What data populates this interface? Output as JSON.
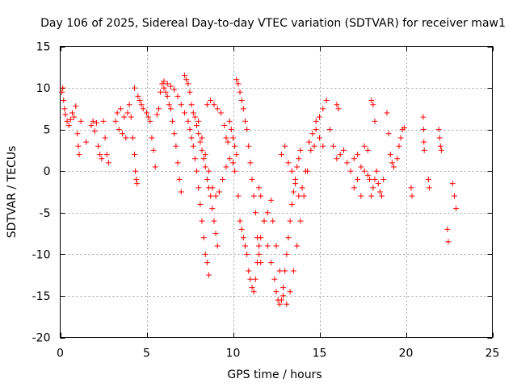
{
  "chart_data": {
    "type": "scatter",
    "title": "Day 106 of 2025, Sidereal Day-to-day VTEC variation (SDTVAR) for receiver maw1",
    "xlabel": "GPS time / hours",
    "ylabel": "SDTVAR / TECUs",
    "xlim": [
      0,
      25
    ],
    "ylim": [
      -20,
      15
    ],
    "xticks": [
      0,
      5,
      10,
      15,
      20,
      25
    ],
    "yticks": [
      -20,
      -15,
      -10,
      -5,
      0,
      5,
      10,
      15
    ],
    "grid": true,
    "marker": "+",
    "color": "#ff0000",
    "series": [
      {
        "name": "SDTVAR",
        "points": [
          [
            0.1,
            9.5
          ],
          [
            0.15,
            10.0
          ],
          [
            0.2,
            8.5
          ],
          [
            0.25,
            7.5
          ],
          [
            0.3,
            6.8
          ],
          [
            0.4,
            6.0
          ],
          [
            0.5,
            5.5
          ],
          [
            0.6,
            6.2
          ],
          [
            0.7,
            7.0
          ],
          [
            0.8,
            6.5
          ],
          [
            0.9,
            7.8
          ],
          [
            1.0,
            4.5
          ],
          [
            1.05,
            3.0
          ],
          [
            1.1,
            2.0
          ],
          [
            1.2,
            6.0
          ],
          [
            1.5,
            3.5
          ],
          [
            1.8,
            5.5
          ],
          [
            1.9,
            6.0
          ],
          [
            2.0,
            4.8
          ],
          [
            2.1,
            5.8
          ],
          [
            2.2,
            3.0
          ],
          [
            2.3,
            2.0
          ],
          [
            2.4,
            1.5
          ],
          [
            2.5,
            6.0
          ],
          [
            2.6,
            4.0
          ],
          [
            2.7,
            2.0
          ],
          [
            2.8,
            1.0
          ],
          [
            3.2,
            6.0
          ],
          [
            3.3,
            7.0
          ],
          [
            3.4,
            5.0
          ],
          [
            3.5,
            7.5
          ],
          [
            3.6,
            4.5
          ],
          [
            3.7,
            6.5
          ],
          [
            3.8,
            4.0
          ],
          [
            3.9,
            7.0
          ],
          [
            4.0,
            8.0
          ],
          [
            4.1,
            6.5
          ],
          [
            4.2,
            4.0
          ],
          [
            4.3,
            2.0
          ],
          [
            4.35,
            0.0
          ],
          [
            4.4,
            -1.0
          ],
          [
            4.45,
            -1.5
          ],
          [
            4.3,
            10.0
          ],
          [
            4.5,
            9.0
          ],
          [
            4.6,
            8.5
          ],
          [
            4.7,
            8.0
          ],
          [
            4.8,
            7.5
          ],
          [
            5.0,
            7.0
          ],
          [
            5.1,
            6.5
          ],
          [
            5.2,
            6.0
          ],
          [
            5.3,
            4.0
          ],
          [
            5.4,
            2.5
          ],
          [
            5.5,
            0.5
          ],
          [
            5.6,
            6.8
          ],
          [
            5.7,
            7.5
          ],
          [
            5.8,
            9.5
          ],
          [
            5.9,
            10.5
          ],
          [
            6.0,
            10.0
          ],
          [
            6.1,
            9.5
          ],
          [
            6.2,
            9.0
          ],
          [
            6.3,
            8.0
          ],
          [
            6.4,
            7.5
          ],
          [
            6.5,
            6.0
          ],
          [
            6.6,
            4.5
          ],
          [
            6.7,
            3.0
          ],
          [
            6.8,
            1.0
          ],
          [
            6.9,
            -1.0
          ],
          [
            7.0,
            -2.5
          ],
          [
            6.0,
            10.8
          ],
          [
            6.2,
            10.5
          ],
          [
            6.4,
            10.2
          ],
          [
            6.6,
            9.8
          ],
          [
            6.8,
            9.0
          ],
          [
            7.0,
            8.0
          ],
          [
            7.2,
            7.0
          ],
          [
            7.4,
            6.0
          ],
          [
            7.5,
            5.0
          ],
          [
            7.6,
            4.0
          ],
          [
            7.7,
            3.0
          ],
          [
            7.8,
            1.5
          ],
          [
            7.9,
            0.0
          ],
          [
            8.0,
            -2.0
          ],
          [
            8.1,
            -4.0
          ],
          [
            8.2,
            -6.0
          ],
          [
            8.3,
            -8.0
          ],
          [
            8.4,
            -10.0
          ],
          [
            8.5,
            -11.0
          ],
          [
            8.6,
            -12.5
          ],
          [
            7.2,
            11.5
          ],
          [
            7.3,
            11.0
          ],
          [
            7.4,
            10.5
          ],
          [
            7.5,
            9.5
          ],
          [
            7.6,
            8.0
          ],
          [
            7.7,
            7.0
          ],
          [
            7.8,
            6.5
          ],
          [
            7.9,
            5.5
          ],
          [
            8.0,
            4.5
          ],
          [
            8.1,
            3.5
          ],
          [
            8.2,
            2.5
          ],
          [
            8.3,
            1.5
          ],
          [
            8.4,
            0.5
          ],
          [
            8.5,
            -1.0
          ],
          [
            8.6,
            -2.0
          ],
          [
            8.7,
            -3.0
          ],
          [
            8.8,
            -4.5
          ],
          [
            8.9,
            -6.0
          ],
          [
            9.0,
            -7.5
          ],
          [
            9.1,
            -9.0
          ],
          [
            8.0,
            6.0
          ],
          [
            8.2,
            4.0
          ],
          [
            8.4,
            2.0
          ],
          [
            8.6,
            0.0
          ],
          [
            8.8,
            -2.0
          ],
          [
            9.0,
            -3.0
          ],
          [
            9.2,
            -2.5
          ],
          [
            9.4,
            -1.0
          ],
          [
            9.6,
            0.5
          ],
          [
            9.8,
            1.5
          ],
          [
            10.0,
            1.0
          ],
          [
            10.1,
            0.0
          ],
          [
            8.5,
            8.0
          ],
          [
            8.7,
            8.5
          ],
          [
            8.9,
            8.0
          ],
          [
            9.1,
            7.5
          ],
          [
            9.3,
            7.0
          ],
          [
            9.5,
            5.5
          ],
          [
            9.6,
            4.0
          ],
          [
            9.7,
            3.5
          ],
          [
            10.2,
            11.0
          ],
          [
            10.3,
            10.5
          ],
          [
            10.4,
            9.5
          ],
          [
            10.5,
            8.5
          ],
          [
            10.6,
            7.5
          ],
          [
            10.7,
            6.0
          ],
          [
            10.8,
            5.0
          ],
          [
            10.9,
            3.0
          ],
          [
            11.0,
            1.0
          ],
          [
            11.1,
            -1.0
          ],
          [
            11.2,
            -3.0
          ],
          [
            11.3,
            -5.0
          ],
          [
            11.4,
            -8.0
          ],
          [
            11.5,
            -10.0
          ],
          [
            11.6,
            -11.0
          ],
          [
            9.8,
            6.0
          ],
          [
            9.9,
            5.0
          ],
          [
            10.0,
            4.0
          ],
          [
            10.1,
            3.0
          ],
          [
            10.2,
            2.0
          ],
          [
            10.3,
            -3.0
          ],
          [
            10.4,
            -6.0
          ],
          [
            10.5,
            -7.0
          ],
          [
            10.6,
            -8.0
          ],
          [
            10.7,
            -9.0
          ],
          [
            10.8,
            -10.0
          ],
          [
            10.9,
            -12.0
          ],
          [
            11.0,
            -13.0
          ],
          [
            11.1,
            -14.0
          ],
          [
            11.2,
            -14.5
          ],
          [
            11.3,
            -13.0
          ],
          [
            11.4,
            -11.0
          ],
          [
            11.5,
            -9.0
          ],
          [
            11.6,
            -8.0
          ],
          [
            11.8,
            -6.0
          ],
          [
            12.0,
            -5.0
          ],
          [
            11.5,
            -2.0
          ],
          [
            11.6,
            -3.0
          ],
          [
            11.8,
            -6.0
          ],
          [
            12.0,
            -9.0
          ],
          [
            12.2,
            -11.0
          ],
          [
            12.4,
            -13.0
          ],
          [
            12.5,
            -14.5
          ],
          [
            12.6,
            -15.5
          ],
          [
            12.7,
            -16.0
          ],
          [
            12.8,
            -15.5
          ],
          [
            12.9,
            -14.0
          ],
          [
            13.0,
            -12.0
          ],
          [
            13.1,
            -10.0
          ],
          [
            13.2,
            -8.0
          ],
          [
            13.3,
            -6.0
          ],
          [
            13.4,
            -4.0
          ],
          [
            13.5,
            -2.5
          ],
          [
            13.6,
            -1.0
          ],
          [
            13.7,
            0.5
          ],
          [
            13.8,
            1.5
          ],
          [
            13.9,
            2.5
          ],
          [
            12.2,
            -3.5
          ],
          [
            12.3,
            -6.0
          ],
          [
            12.5,
            -9.0
          ],
          [
            12.7,
            -12.0
          ],
          [
            12.9,
            -15.0
          ],
          [
            13.1,
            -16.0
          ],
          [
            13.3,
            -14.5
          ],
          [
            13.5,
            -12.0
          ],
          [
            13.7,
            -9.0
          ],
          [
            13.9,
            -6.0
          ],
          [
            14.1,
            -3.0
          ],
          [
            14.3,
            0.0
          ],
          [
            14.5,
            2.5
          ],
          [
            14.7,
            3.0
          ],
          [
            12.8,
            2.0
          ],
          [
            13.0,
            3.0
          ],
          [
            13.2,
            1.0
          ],
          [
            13.4,
            0.0
          ],
          [
            13.6,
            -1.5
          ],
          [
            13.8,
            -3.0
          ],
          [
            14.0,
            -2.0
          ],
          [
            14.2,
            0.0
          ],
          [
            14.4,
            3.5
          ],
          [
            14.6,
            4.5
          ],
          [
            14.8,
            5.0
          ],
          [
            15.0,
            4.0
          ],
          [
            15.2,
            3.0
          ],
          [
            14.8,
            6.0
          ],
          [
            15.0,
            6.5
          ],
          [
            15.2,
            7.5
          ],
          [
            15.4,
            8.5
          ],
          [
            15.6,
            5.0
          ],
          [
            15.8,
            3.0
          ],
          [
            16.0,
            1.5
          ],
          [
            16.2,
            2.0
          ],
          [
            16.4,
            2.5
          ],
          [
            16.6,
            1.0
          ],
          [
            16.8,
            0.0
          ],
          [
            17.0,
            1.5
          ],
          [
            17.2,
            2.0
          ],
          [
            17.4,
            0.5
          ],
          [
            17.6,
            0.0
          ],
          [
            17.8,
            -0.5
          ],
          [
            16.0,
            8.0
          ],
          [
            16.1,
            7.5
          ],
          [
            17.0,
            -2.0
          ],
          [
            17.2,
            -1.0
          ],
          [
            17.4,
            -3.0
          ],
          [
            17.6,
            3.0
          ],
          [
            17.8,
            2.5
          ],
          [
            18.0,
            8.5
          ],
          [
            18.1,
            8.0
          ],
          [
            18.2,
            6.0
          ],
          [
            17.9,
            -1.0
          ],
          [
            18.0,
            -3.0
          ],
          [
            18.1,
            -2.0
          ],
          [
            18.2,
            -1.0
          ],
          [
            18.3,
            0.0
          ],
          [
            18.4,
            -1.5
          ],
          [
            18.5,
            -2.5
          ],
          [
            18.6,
            -3.0
          ],
          [
            18.7,
            -1.0
          ],
          [
            18.9,
            7.0
          ],
          [
            19.0,
            4.5
          ],
          [
            19.1,
            2.0
          ],
          [
            19.2,
            1.0
          ],
          [
            19.3,
            0.5
          ],
          [
            19.5,
            1.5
          ],
          [
            19.6,
            3.0
          ],
          [
            19.7,
            4.0
          ],
          [
            19.8,
            5.0
          ],
          [
            19.9,
            5.2
          ],
          [
            20.3,
            -2.0
          ],
          [
            20.35,
            -3.0
          ],
          [
            21.0,
            6.5
          ],
          [
            21.02,
            5.0
          ],
          [
            21.04,
            3.5
          ],
          [
            21.06,
            2.5
          ],
          [
            21.3,
            -1.0
          ],
          [
            21.35,
            -2.0
          ],
          [
            21.9,
            5.0
          ],
          [
            21.95,
            4.0
          ],
          [
            22.0,
            3.0
          ],
          [
            22.05,
            2.5
          ],
          [
            22.4,
            -7.0
          ],
          [
            22.45,
            -8.5
          ],
          [
            22.7,
            -1.5
          ],
          [
            22.8,
            -3.0
          ],
          [
            22.9,
            -4.5
          ]
        ]
      }
    ]
  }
}
